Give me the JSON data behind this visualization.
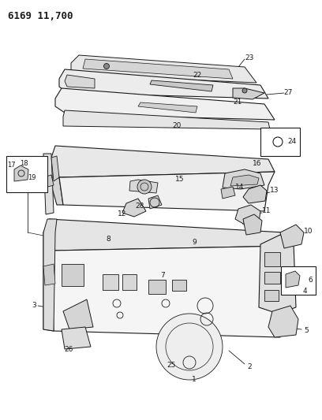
{
  "title": "6169 11,700",
  "bg_color": "#ffffff",
  "line_color": "#1a1a1a",
  "fig_width": 4.08,
  "fig_height": 5.33,
  "dpi": 100
}
